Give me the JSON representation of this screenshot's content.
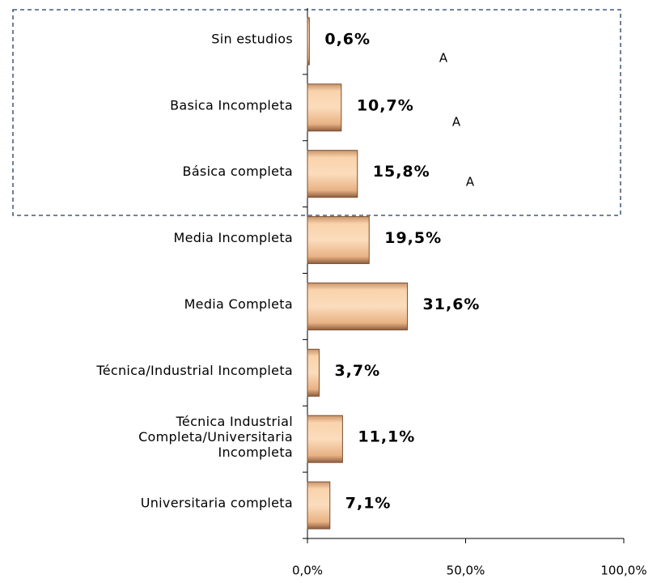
{
  "chart_data": {
    "type": "bar",
    "orientation": "horizontal",
    "categories": [
      "Sin estudios",
      "Basica Incompleta",
      "Básica completa",
      "Media Incompleta",
      "Media Completa",
      "Técnica/Industrial Incompleta",
      "Técnica Industrial\nCompleta/Universitaria\nIncompleta",
      "Universitaria completa"
    ],
    "values": [
      0.6,
      10.7,
      15.8,
      19.5,
      31.6,
      3.7,
      11.1,
      7.1
    ],
    "value_labels": [
      "0,6%",
      "10,7%",
      "15,8%",
      "19,5%",
      "31,6%",
      "3,7%",
      "11,1%",
      "7,1%"
    ],
    "color": "#f4c597",
    "xlim": [
      0,
      100
    ],
    "xticks": [
      {
        "value": 0,
        "label": "0,0%"
      },
      {
        "value": 50,
        "label": "50,0%"
      },
      {
        "value": 100,
        "label": "100,0%"
      }
    ],
    "annotations": [
      "A",
      "A",
      "A"
    ]
  }
}
